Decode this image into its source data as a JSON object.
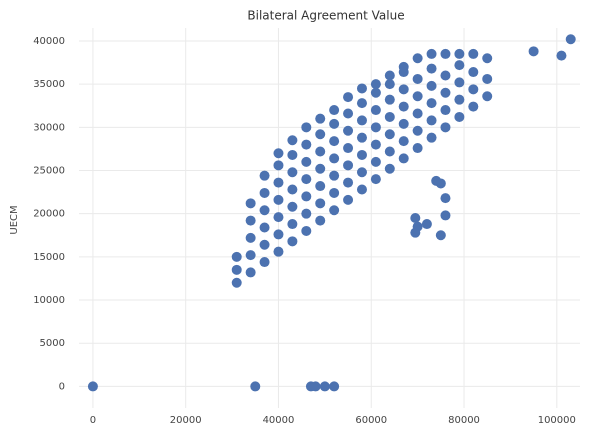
{
  "chart_data": {
    "type": "scatter",
    "title": "Bilateral Agreement Value",
    "y_label": "UECM",
    "color": "#4c72b0",
    "x": [
      0,
      35000,
      47000,
      48000,
      50000,
      52000,
      95000,
      101000,
      103000,
      74000,
      75000,
      69500,
      70000,
      69500,
      72000,
      75000,
      76000,
      76000,
      31000,
      31000,
      31000,
      34000,
      34000,
      34000,
      34000,
      34000,
      37000,
      37000,
      37000,
      37000,
      37000,
      37000,
      40000,
      40000,
      40000,
      40000,
      40000,
      40000,
      40000,
      43000,
      43000,
      43000,
      43000,
      43000,
      43000,
      43000,
      46000,
      46000,
      46000,
      46000,
      46000,
      46000,
      46000,
      49000,
      49000,
      49000,
      49000,
      49000,
      49000,
      49000,
      52000,
      52000,
      52000,
      52000,
      52000,
      52000,
      52000,
      55000,
      55000,
      55000,
      55000,
      55000,
      55000,
      55000,
      58000,
      58000,
      58000,
      58000,
      58000,
      58000,
      58000,
      61000,
      61000,
      61000,
      61000,
      61000,
      61000,
      61000,
      64000,
      64000,
      64000,
      64000,
      64000,
      64000,
      64000,
      67000,
      67000,
      67000,
      67000,
      67000,
      67000,
      67000,
      70000,
      70000,
      70000,
      70000,
      70000,
      70000,
      73000,
      73000,
      73000,
      73000,
      73000,
      73000,
      76000,
      76000,
      76000,
      76000,
      76000,
      79000,
      79000,
      79000,
      79000,
      79000,
      82000,
      82000,
      82000,
      82000,
      85000,
      85000,
      85000
    ],
    "y": [
      0,
      0,
      0,
      0,
      0,
      0,
      38800,
      38300,
      40200,
      23800,
      23500,
      19500,
      18500,
      17800,
      18800,
      17500,
      19800,
      21800,
      12000,
      13500,
      15000,
      13200,
      15200,
      17200,
      19200,
      21200,
      14400,
      16400,
      18400,
      20400,
      22400,
      24400,
      15600,
      17600,
      19600,
      21600,
      23600,
      25600,
      27000,
      16800,
      18800,
      20800,
      22800,
      24800,
      26800,
      28500,
      18000,
      20000,
      22000,
      24000,
      26000,
      28000,
      30000,
      19200,
      21200,
      23200,
      25200,
      27200,
      29200,
      31000,
      20400,
      22400,
      24400,
      26400,
      28400,
      30400,
      32000,
      21600,
      23600,
      25600,
      27600,
      29600,
      31600,
      33500,
      22800,
      24800,
      26800,
      28800,
      30800,
      32800,
      34500,
      24000,
      26000,
      28000,
      30000,
      32000,
      34000,
      35000,
      25200,
      27200,
      29200,
      31200,
      33200,
      35000,
      36000,
      26400,
      28400,
      30400,
      32400,
      34400,
      36400,
      37000,
      27600,
      29600,
      31600,
      33600,
      35600,
      38000,
      28800,
      30800,
      32800,
      34800,
      36800,
      38500,
      30000,
      32000,
      34000,
      36000,
      38500,
      31200,
      33200,
      35200,
      37200,
      38500,
      32400,
      34400,
      36400,
      38500,
      33600,
      35600,
      38000
    ],
    "xlim": [
      -3000,
      105000
    ],
    "ylim": [
      -2500,
      41500
    ],
    "xticks": [
      0,
      20000,
      40000,
      60000,
      80000,
      100000
    ],
    "yticks": [
      0,
      5000,
      10000,
      15000,
      20000,
      25000,
      30000,
      35000,
      40000
    ],
    "grid": true
  }
}
